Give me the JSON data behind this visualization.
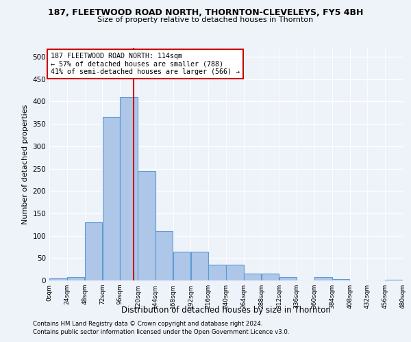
{
  "title": "187, FLEETWOOD ROAD NORTH, THORNTON-CLEVELEYS, FY5 4BH",
  "subtitle": "Size of property relative to detached houses in Thornton",
  "xlabel": "Distribution of detached houses by size in Thornton",
  "ylabel": "Number of detached properties",
  "footnote1": "Contains HM Land Registry data © Crown copyright and database right 2024.",
  "footnote2": "Contains public sector information licensed under the Open Government Licence v3.0.",
  "bin_edges": [
    0,
    24,
    48,
    72,
    96,
    120,
    144,
    168,
    192,
    216,
    240,
    264,
    288,
    312,
    336,
    360,
    384,
    408,
    432,
    456,
    480
  ],
  "bar_heights": [
    5,
    7,
    130,
    365,
    410,
    244,
    110,
    65,
    65,
    35,
    35,
    15,
    15,
    8,
    0,
    7,
    3,
    0,
    0,
    2
  ],
  "bar_color": "#aec6e8",
  "bar_edge_color": "#5b9bd5",
  "property_size": 114,
  "annotation_line1": "187 FLEETWOOD ROAD NORTH: 114sqm",
  "annotation_line2": "← 57% of detached houses are smaller (788)",
  "annotation_line3": "41% of semi-detached houses are larger (566) →",
  "vline_color": "#cc0000",
  "annotation_box_edge": "#cc0000",
  "bg_color": "#eef2f9",
  "ylim": [
    0,
    520
  ],
  "xlim": [
    0,
    480
  ],
  "yticks": [
    0,
    50,
    100,
    150,
    200,
    250,
    300,
    350,
    400,
    450,
    500
  ]
}
